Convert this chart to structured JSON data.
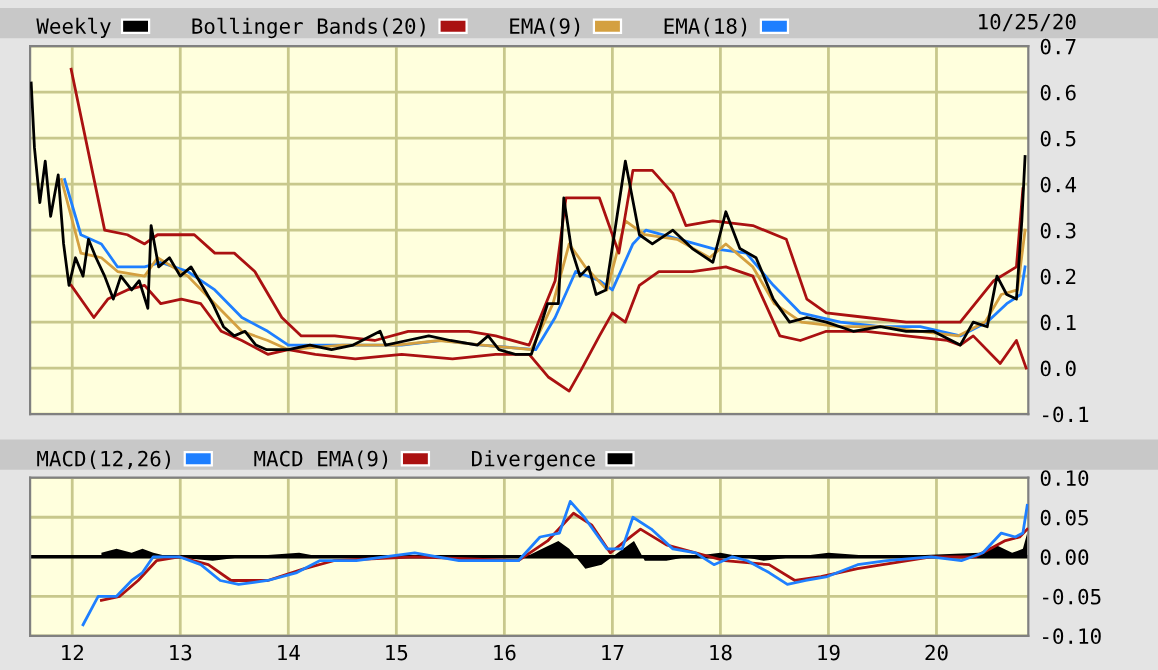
{
  "chart_data": [
    {
      "type": "line",
      "xlim": [
        11.61,
        20.85
      ],
      "ylim": [
        -0.1,
        0.7
      ],
      "xticks": [
        12,
        13,
        14,
        15,
        16,
        17,
        18,
        19,
        20
      ],
      "yticks": [
        {
          "value": -0.1,
          "label": "-0.1"
        },
        {
          "value": 0.0,
          "label": "0.0"
        },
        0.1,
        0.2,
        0.3,
        0.4,
        0.5,
        0.6,
        0.7
      ],
      "tick_labels": "y",
      "grid": true,
      "legend": "top left",
      "annotations": [
        "10/25/20"
      ],
      "series": [
        {
          "name": "Weekly",
          "color": "#000000",
          "x": [
            11.62,
            11.65,
            11.7,
            11.75,
            11.8,
            11.87,
            11.92,
            11.97,
            12.03,
            12.1,
            12.15,
            12.22,
            12.3,
            12.38,
            12.45,
            12.55,
            12.62,
            12.7,
            12.73,
            12.8,
            12.9,
            13.0,
            13.1,
            13.2,
            13.3,
            13.4,
            13.5,
            13.6,
            13.7,
            13.8,
            14.0,
            14.2,
            14.4,
            14.6,
            14.85,
            14.9,
            15.1,
            15.3,
            15.5,
            15.75,
            15.85,
            15.95,
            16.1,
            16.25,
            16.32,
            16.4,
            16.5,
            16.55,
            16.62,
            16.7,
            16.78,
            16.85,
            16.94,
            17.12,
            17.25,
            17.37,
            17.56,
            17.74,
            17.93,
            18.05,
            18.18,
            18.33,
            18.49,
            18.64,
            18.8,
            18.98,
            19.23,
            19.48,
            19.72,
            19.97,
            20.22,
            20.34,
            20.47,
            20.56,
            20.65,
            20.74,
            20.79,
            20.82
          ],
          "values": [
            0.62,
            0.48,
            0.36,
            0.45,
            0.33,
            0.42,
            0.27,
            0.18,
            0.24,
            0.2,
            0.28,
            0.24,
            0.2,
            0.15,
            0.2,
            0.17,
            0.19,
            0.13,
            0.31,
            0.22,
            0.24,
            0.2,
            0.22,
            0.18,
            0.14,
            0.09,
            0.07,
            0.08,
            0.05,
            0.04,
            0.04,
            0.05,
            0.04,
            0.05,
            0.08,
            0.05,
            0.06,
            0.07,
            0.06,
            0.05,
            0.07,
            0.04,
            0.03,
            0.03,
            0.08,
            0.14,
            0.14,
            0.37,
            0.26,
            0.2,
            0.22,
            0.16,
            0.17,
            0.45,
            0.29,
            0.27,
            0.3,
            0.26,
            0.23,
            0.34,
            0.26,
            0.24,
            0.15,
            0.1,
            0.11,
            0.1,
            0.08,
            0.09,
            0.08,
            0.08,
            0.05,
            0.1,
            0.09,
            0.2,
            0.16,
            0.15,
            0.32,
            0.46
          ]
        },
        {
          "name": "Bollinger Bands(20)",
          "color": "#aa1111",
          "x": [
            11.99,
            12.14,
            12.3,
            12.51,
            12.67,
            12.79,
            13.13,
            13.32,
            13.5,
            13.69,
            13.94,
            14.12,
            14.43,
            14.8,
            15.11,
            15.67,
            15.92,
            16.23,
            16.47,
            16.57,
            16.78,
            16.88,
            16.97,
            17.06,
            17.19,
            17.37,
            17.56,
            17.68,
            17.93,
            18.3,
            18.61,
            18.8,
            18.98,
            19.35,
            19.72,
            20.22,
            20.53,
            20.74,
            20.8
          ],
          "values": [
            0.65,
            0.48,
            0.3,
            0.29,
            0.27,
            0.29,
            0.29,
            0.25,
            0.25,
            0.21,
            0.11,
            0.07,
            0.07,
            0.06,
            0.08,
            0.08,
            0.07,
            0.05,
            0.19,
            0.37,
            0.37,
            0.37,
            0.31,
            0.25,
            0.43,
            0.43,
            0.38,
            0.31,
            0.32,
            0.31,
            0.28,
            0.15,
            0.12,
            0.11,
            0.1,
            0.1,
            0.19,
            0.22,
            0.39
          ]
        },
        {
          "color": "#aa1111",
          "x": [
            11.99,
            12.2,
            12.33,
            12.51,
            12.67,
            12.82,
            13.01,
            13.19,
            13.38,
            13.57,
            13.81,
            14.0,
            14.25,
            14.62,
            15.05,
            15.52,
            15.92,
            16.23,
            16.41,
            16.6,
            16.72,
            16.88,
            17.0,
            17.12,
            17.25,
            17.43,
            17.74,
            18.05,
            18.3,
            18.55,
            18.74,
            18.98,
            19.35,
            19.72,
            20.1,
            20.22,
            20.34,
            20.59,
            20.74,
            20.83
          ],
          "values": [
            0.18,
            0.11,
            0.15,
            0.17,
            0.18,
            0.14,
            0.15,
            0.14,
            0.08,
            0.06,
            0.03,
            0.04,
            0.03,
            0.02,
            0.03,
            0.02,
            0.03,
            0.03,
            -0.02,
            -0.05,
            0.0,
            0.07,
            0.12,
            0.1,
            0.18,
            0.21,
            0.21,
            0.22,
            0.2,
            0.07,
            0.06,
            0.08,
            0.08,
            0.07,
            0.06,
            0.05,
            0.07,
            0.01,
            0.06,
            0.0
          ]
        },
        {
          "name": "EMA(9)",
          "color": "#d4a040",
          "x": [
            11.9,
            12.08,
            12.27,
            12.42,
            12.67,
            12.79,
            13.07,
            13.32,
            13.57,
            13.81,
            14.0,
            14.5,
            15.0,
            15.4,
            15.8,
            16.25,
            16.45,
            16.6,
            16.75,
            16.95,
            17.12,
            17.3,
            17.6,
            17.9,
            18.05,
            18.3,
            18.5,
            18.75,
            19.1,
            19.5,
            19.85,
            20.2,
            20.45,
            20.6,
            20.75,
            20.82
          ],
          "values": [
            0.41,
            0.25,
            0.24,
            0.21,
            0.2,
            0.24,
            0.2,
            0.14,
            0.08,
            0.06,
            0.04,
            0.05,
            0.05,
            0.06,
            0.05,
            0.04,
            0.14,
            0.27,
            0.22,
            0.17,
            0.32,
            0.29,
            0.28,
            0.24,
            0.27,
            0.22,
            0.14,
            0.1,
            0.09,
            0.09,
            0.08,
            0.07,
            0.1,
            0.16,
            0.17,
            0.3
          ]
        },
        {
          "name": "EMA(18)",
          "color": "#1e7fff",
          "x": [
            11.93,
            12.08,
            12.27,
            12.42,
            12.67,
            12.82,
            13.07,
            13.32,
            13.57,
            13.81,
            14.0,
            14.25,
            14.62,
            15.05,
            15.42,
            15.79,
            16.29,
            16.47,
            16.66,
            16.88,
            17.0,
            17.19,
            17.31,
            17.62,
            17.93,
            18.24,
            18.49,
            18.74,
            19.11,
            19.48,
            19.85,
            20.22,
            20.47,
            20.65,
            20.78,
            20.82
          ],
          "values": [
            0.41,
            0.29,
            0.27,
            0.22,
            0.22,
            0.23,
            0.21,
            0.17,
            0.11,
            0.08,
            0.05,
            0.05,
            0.05,
            0.05,
            0.06,
            0.05,
            0.04,
            0.11,
            0.21,
            0.19,
            0.17,
            0.27,
            0.3,
            0.28,
            0.26,
            0.25,
            0.18,
            0.12,
            0.1,
            0.09,
            0.09,
            0.07,
            0.1,
            0.14,
            0.16,
            0.22
          ]
        }
      ]
    },
    {
      "type": "line",
      "xlim": [
        11.61,
        20.85
      ],
      "ylim": [
        -0.1,
        0.1
      ],
      "xticks": [
        12,
        13,
        14,
        15,
        16,
        17,
        18,
        19,
        20
      ],
      "yticks": [
        {
          "value": -0.1,
          "label": "-0.10"
        },
        {
          "value": -0.05,
          "label": "-0.05"
        },
        {
          "value": 0.0,
          "label": "0.00"
        },
        0.05,
        {
          "value": 0.1,
          "label": "0.10"
        }
      ],
      "grid": true,
      "legend": "top left",
      "ref_lines": [
        {
          "axis": "y",
          "value": 0,
          "color": "#000000"
        }
      ],
      "series": [
        {
          "name": "MACD(12,26)",
          "color": "#1e7fff",
          "x": [
            12.1,
            12.24,
            12.41,
            12.55,
            12.65,
            12.75,
            12.99,
            13.19,
            13.37,
            13.54,
            13.81,
            14.08,
            14.29,
            14.63,
            15.17,
            15.58,
            16.13,
            16.33,
            16.51,
            16.61,
            16.74,
            16.95,
            17.09,
            17.19,
            17.36,
            17.56,
            17.77,
            17.94,
            18.11,
            18.25,
            18.45,
            18.62,
            18.79,
            18.99,
            19.27,
            19.54,
            19.95,
            20.23,
            20.43,
            20.6,
            20.73,
            20.8,
            20.84
          ],
          "values": [
            -0.086,
            -0.05,
            -0.05,
            -0.03,
            -0.02,
            0.0,
            0.0,
            -0.01,
            -0.03,
            -0.035,
            -0.03,
            -0.02,
            -0.005,
            -0.005,
            0.005,
            -0.005,
            -0.005,
            0.025,
            0.03,
            0.07,
            0.05,
            0.01,
            0.01,
            0.05,
            0.035,
            0.01,
            0.005,
            -0.01,
            0.0,
            -0.005,
            -0.02,
            -0.035,
            -0.03,
            -0.025,
            -0.01,
            -0.005,
            0.0,
            -0.005,
            0.005,
            0.03,
            0.025,
            0.03,
            0.065
          ]
        },
        {
          "name": "MACD EMA(9)",
          "color": "#aa1111",
          "x": [
            12.27,
            12.44,
            12.61,
            12.78,
            12.99,
            13.26,
            13.47,
            13.81,
            14.15,
            14.42,
            15.17,
            16.13,
            16.4,
            16.64,
            16.81,
            16.98,
            17.12,
            17.26,
            17.5,
            17.77,
            18.04,
            18.45,
            18.69,
            18.93,
            19.27,
            19.95,
            20.36,
            20.63,
            20.77,
            20.84
          ],
          "values": [
            -0.055,
            -0.05,
            -0.03,
            -0.005,
            0.0,
            -0.01,
            -0.03,
            -0.03,
            -0.015,
            -0.005,
            0.0,
            -0.005,
            0.02,
            0.055,
            0.04,
            0.005,
            0.02,
            0.035,
            0.015,
            0.005,
            -0.005,
            -0.01,
            -0.03,
            -0.025,
            -0.015,
            0.0,
            0.0,
            0.02,
            0.025,
            0.035
          ]
        },
        {
          "name": "Divergence",
          "type": "area",
          "color": "#000000",
          "x": [
            12.27,
            12.41,
            12.55,
            12.65,
            12.75,
            12.9,
            13.3,
            13.6,
            14.1,
            14.3,
            15.0,
            16.2,
            16.35,
            16.5,
            16.6,
            16.75,
            16.9,
            17.05,
            17.2,
            17.3,
            17.5,
            17.7,
            18.0,
            18.4,
            18.7,
            19.0,
            19.5,
            20.4,
            20.55,
            20.7,
            20.8,
            20.84
          ],
          "values": [
            0.005,
            0.01,
            0.005,
            0.01,
            0.005,
            0.0,
            -0.005,
            0.0,
            0.005,
            0.0,
            0.0,
            0.0,
            0.01,
            0.02,
            0.01,
            -0.015,
            -0.01,
            0.005,
            0.02,
            -0.005,
            -0.005,
            0.0,
            0.005,
            -0.005,
            0.0,
            0.005,
            0.0,
            0.005,
            0.015,
            0.005,
            0.01,
            0.03
          ]
        }
      ]
    }
  ]
}
